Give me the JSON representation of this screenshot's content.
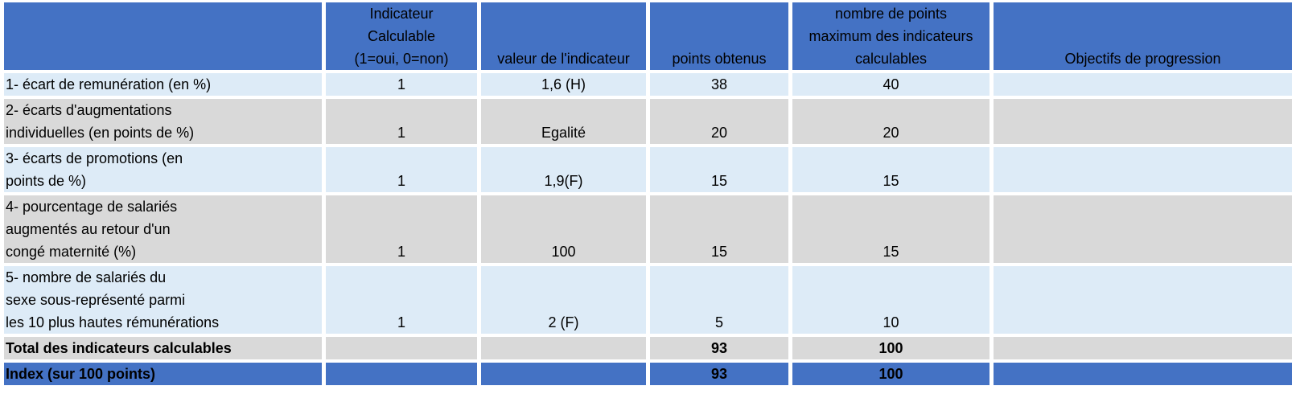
{
  "table": {
    "header": [
      [],
      [
        "Indicateur",
        "Calculable",
        "(1=oui, 0=non)"
      ],
      [
        "valeur de l'indicateur"
      ],
      [
        "points obtenus"
      ],
      [
        "nombre de points",
        "maximum des indicateurs",
        "calculables"
      ],
      [
        "Objectifs de progression"
      ]
    ],
    "rows": [
      {
        "label": [
          "1- écart de remunération (en %)"
        ],
        "calculable": 1,
        "valeur": "1,6 (H)",
        "points": 38,
        "max": 40
      },
      {
        "label": [
          "2- écarts d'augmentations",
          "individuelles (en points de %)"
        ],
        "calculable": 1,
        "valeur": "Egalité",
        "points": 20,
        "max": 20
      },
      {
        "label": [
          "3- écarts de promotions (en",
          "points de %)"
        ],
        "calculable": 1,
        "valeur": "1,9(F)",
        "points": 15,
        "max": 15
      },
      {
        "label": [
          "4- pourcentage de salariés",
          "augmentés au retour d'un",
          "congé maternité (%)"
        ],
        "calculable": 1,
        "valeur": "100",
        "points": 15,
        "max": 15
      },
      {
        "label": [
          "5- nombre de salariés du",
          "sexe sous-représenté parmi",
          "les 10 plus hautes rémunérations"
        ],
        "calculable": 1,
        "valeur": "2 (F)",
        "points": 5,
        "max": 10
      }
    ],
    "totals": [
      {
        "label": "Total des indicateurs calculables",
        "points": 93,
        "max": 100
      },
      {
        "label": "Index (sur 100 points)",
        "points": 93,
        "max": 100
      }
    ]
  }
}
